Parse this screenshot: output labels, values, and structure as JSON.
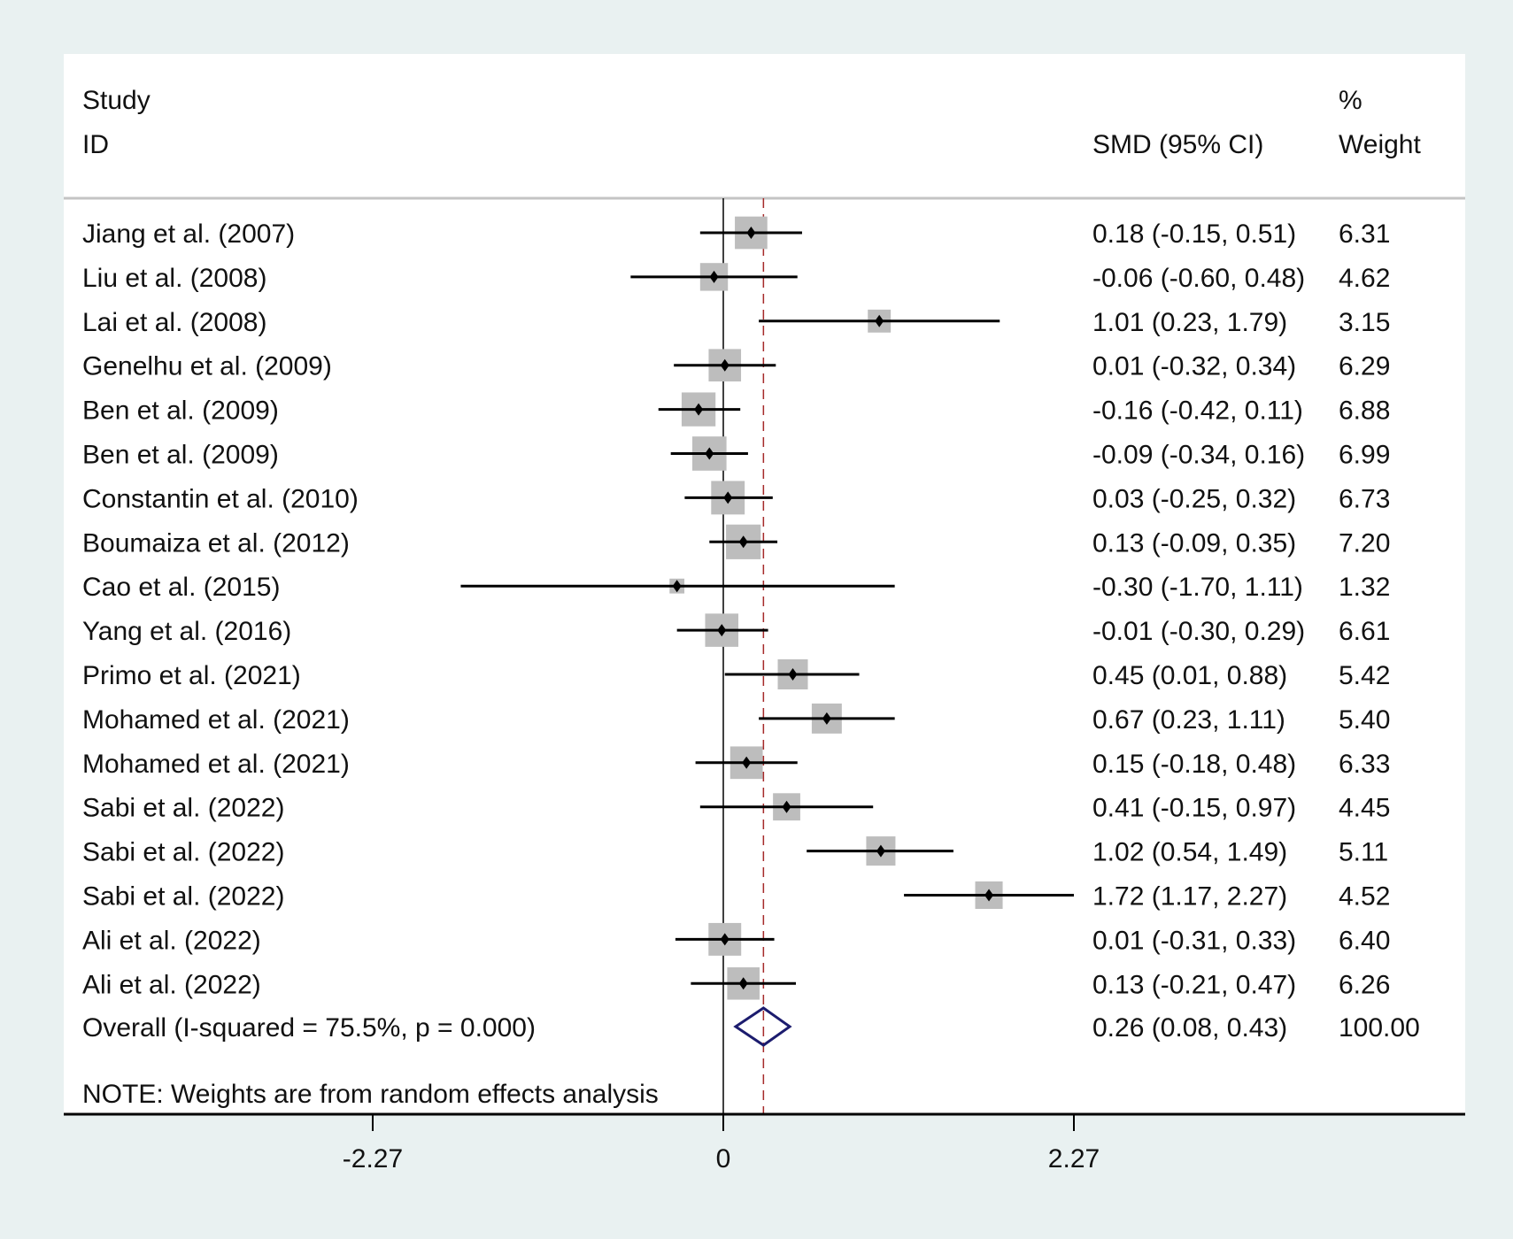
{
  "chart_data": {
    "type": "forest",
    "header": {
      "study": "Study",
      "id": "ID",
      "smd": "SMD (95% CI)",
      "pct": "%",
      "weight": "Weight"
    },
    "studies": [
      {
        "label": "Jiang et al. (2007)",
        "smd": 0.18,
        "lo": -0.15,
        "hi": 0.51,
        "weight": 6.31,
        "ci_text": "0.18 (-0.15, 0.51)",
        "w_text": "6.31"
      },
      {
        "label": "Liu et al. (2008)",
        "smd": -0.06,
        "lo": -0.6,
        "hi": 0.48,
        "weight": 4.62,
        "ci_text": "-0.06 (-0.60, 0.48)",
        "w_text": "4.62"
      },
      {
        "label": "Lai et al. (2008)",
        "smd": 1.01,
        "lo": 0.23,
        "hi": 1.79,
        "weight": 3.15,
        "ci_text": "1.01 (0.23, 1.79)",
        "w_text": "3.15"
      },
      {
        "label": "Genelhu et al. (2009)",
        "smd": 0.01,
        "lo": -0.32,
        "hi": 0.34,
        "weight": 6.29,
        "ci_text": "0.01 (-0.32, 0.34)",
        "w_text": "6.29"
      },
      {
        "label": "Ben et al. (2009)",
        "smd": -0.16,
        "lo": -0.42,
        "hi": 0.11,
        "weight": 6.88,
        "ci_text": "-0.16 (-0.42, 0.11)",
        "w_text": "6.88"
      },
      {
        "label": "Ben et al. (2009)",
        "smd": -0.09,
        "lo": -0.34,
        "hi": 0.16,
        "weight": 6.99,
        "ci_text": "-0.09 (-0.34, 0.16)",
        "w_text": "6.99"
      },
      {
        "label": "Constantin et al. (2010)",
        "smd": 0.03,
        "lo": -0.25,
        "hi": 0.32,
        "weight": 6.73,
        "ci_text": "0.03 (-0.25, 0.32)",
        "w_text": "6.73"
      },
      {
        "label": "Boumaiza et al. (2012)",
        "smd": 0.13,
        "lo": -0.09,
        "hi": 0.35,
        "weight": 7.2,
        "ci_text": "0.13 (-0.09, 0.35)",
        "w_text": "7.20"
      },
      {
        "label": "Cao et al. (2015)",
        "smd": -0.3,
        "lo": -1.7,
        "hi": 1.11,
        "weight": 1.32,
        "ci_text": "-0.30 (-1.70, 1.11)",
        "w_text": "1.32"
      },
      {
        "label": "Yang et al. (2016)",
        "smd": -0.01,
        "lo": -0.3,
        "hi": 0.29,
        "weight": 6.61,
        "ci_text": "-0.01 (-0.30, 0.29)",
        "w_text": "6.61"
      },
      {
        "label": "Primo et al. (2021)",
        "smd": 0.45,
        "lo": 0.01,
        "hi": 0.88,
        "weight": 5.42,
        "ci_text": "0.45 (0.01, 0.88)",
        "w_text": "5.42"
      },
      {
        "label": "Mohamed et al. (2021)",
        "smd": 0.67,
        "lo": 0.23,
        "hi": 1.11,
        "weight": 5.4,
        "ci_text": "0.67 (0.23, 1.11)",
        "w_text": "5.40"
      },
      {
        "label": "Mohamed et al. (2021)",
        "smd": 0.15,
        "lo": -0.18,
        "hi": 0.48,
        "weight": 6.33,
        "ci_text": "0.15 (-0.18, 0.48)",
        "w_text": "6.33"
      },
      {
        "label": "Sabi et al. (2022)",
        "smd": 0.41,
        "lo": -0.15,
        "hi": 0.97,
        "weight": 4.45,
        "ci_text": "0.41 (-0.15, 0.97)",
        "w_text": "4.45"
      },
      {
        "label": "Sabi et al. (2022)",
        "smd": 1.02,
        "lo": 0.54,
        "hi": 1.49,
        "weight": 5.11,
        "ci_text": "1.02 (0.54, 1.49)",
        "w_text": "5.11"
      },
      {
        "label": "Sabi et al. (2022)",
        "smd": 1.72,
        "lo": 1.17,
        "hi": 2.27,
        "weight": 4.52,
        "ci_text": "1.72 (1.17, 2.27)",
        "w_text": "4.52"
      },
      {
        "label": "Ali et al. (2022)",
        "smd": 0.01,
        "lo": -0.31,
        "hi": 0.33,
        "weight": 6.4,
        "ci_text": "0.01 (-0.31, 0.33)",
        "w_text": "6.40"
      },
      {
        "label": "Ali et al. (2022)",
        "smd": 0.13,
        "lo": -0.21,
        "hi": 0.47,
        "weight": 6.26,
        "ci_text": "0.13 (-0.21, 0.47)",
        "w_text": "6.26"
      }
    ],
    "overall": {
      "label": "Overall  (I-squared = 75.5%, p = 0.000)",
      "smd": 0.26,
      "lo": 0.08,
      "hi": 0.43,
      "weight": 100.0,
      "ci_text": "0.26 (0.08, 0.43)",
      "w_text": "100.00"
    },
    "note": "NOTE: Weights are from random effects analysis",
    "x_ticks": [
      -2.27,
      0,
      2.27
    ],
    "x_tick_labels": [
      "-2.27",
      "0",
      "2.27"
    ],
    "xlim": [
      -2.27,
      2.27
    ],
    "colors": {
      "box": "#bdbdbd",
      "ci": "#000000",
      "diamond": "#1c1c6e",
      "ref_line": "#a52a2a",
      "background": "#e9f1f1"
    }
  }
}
